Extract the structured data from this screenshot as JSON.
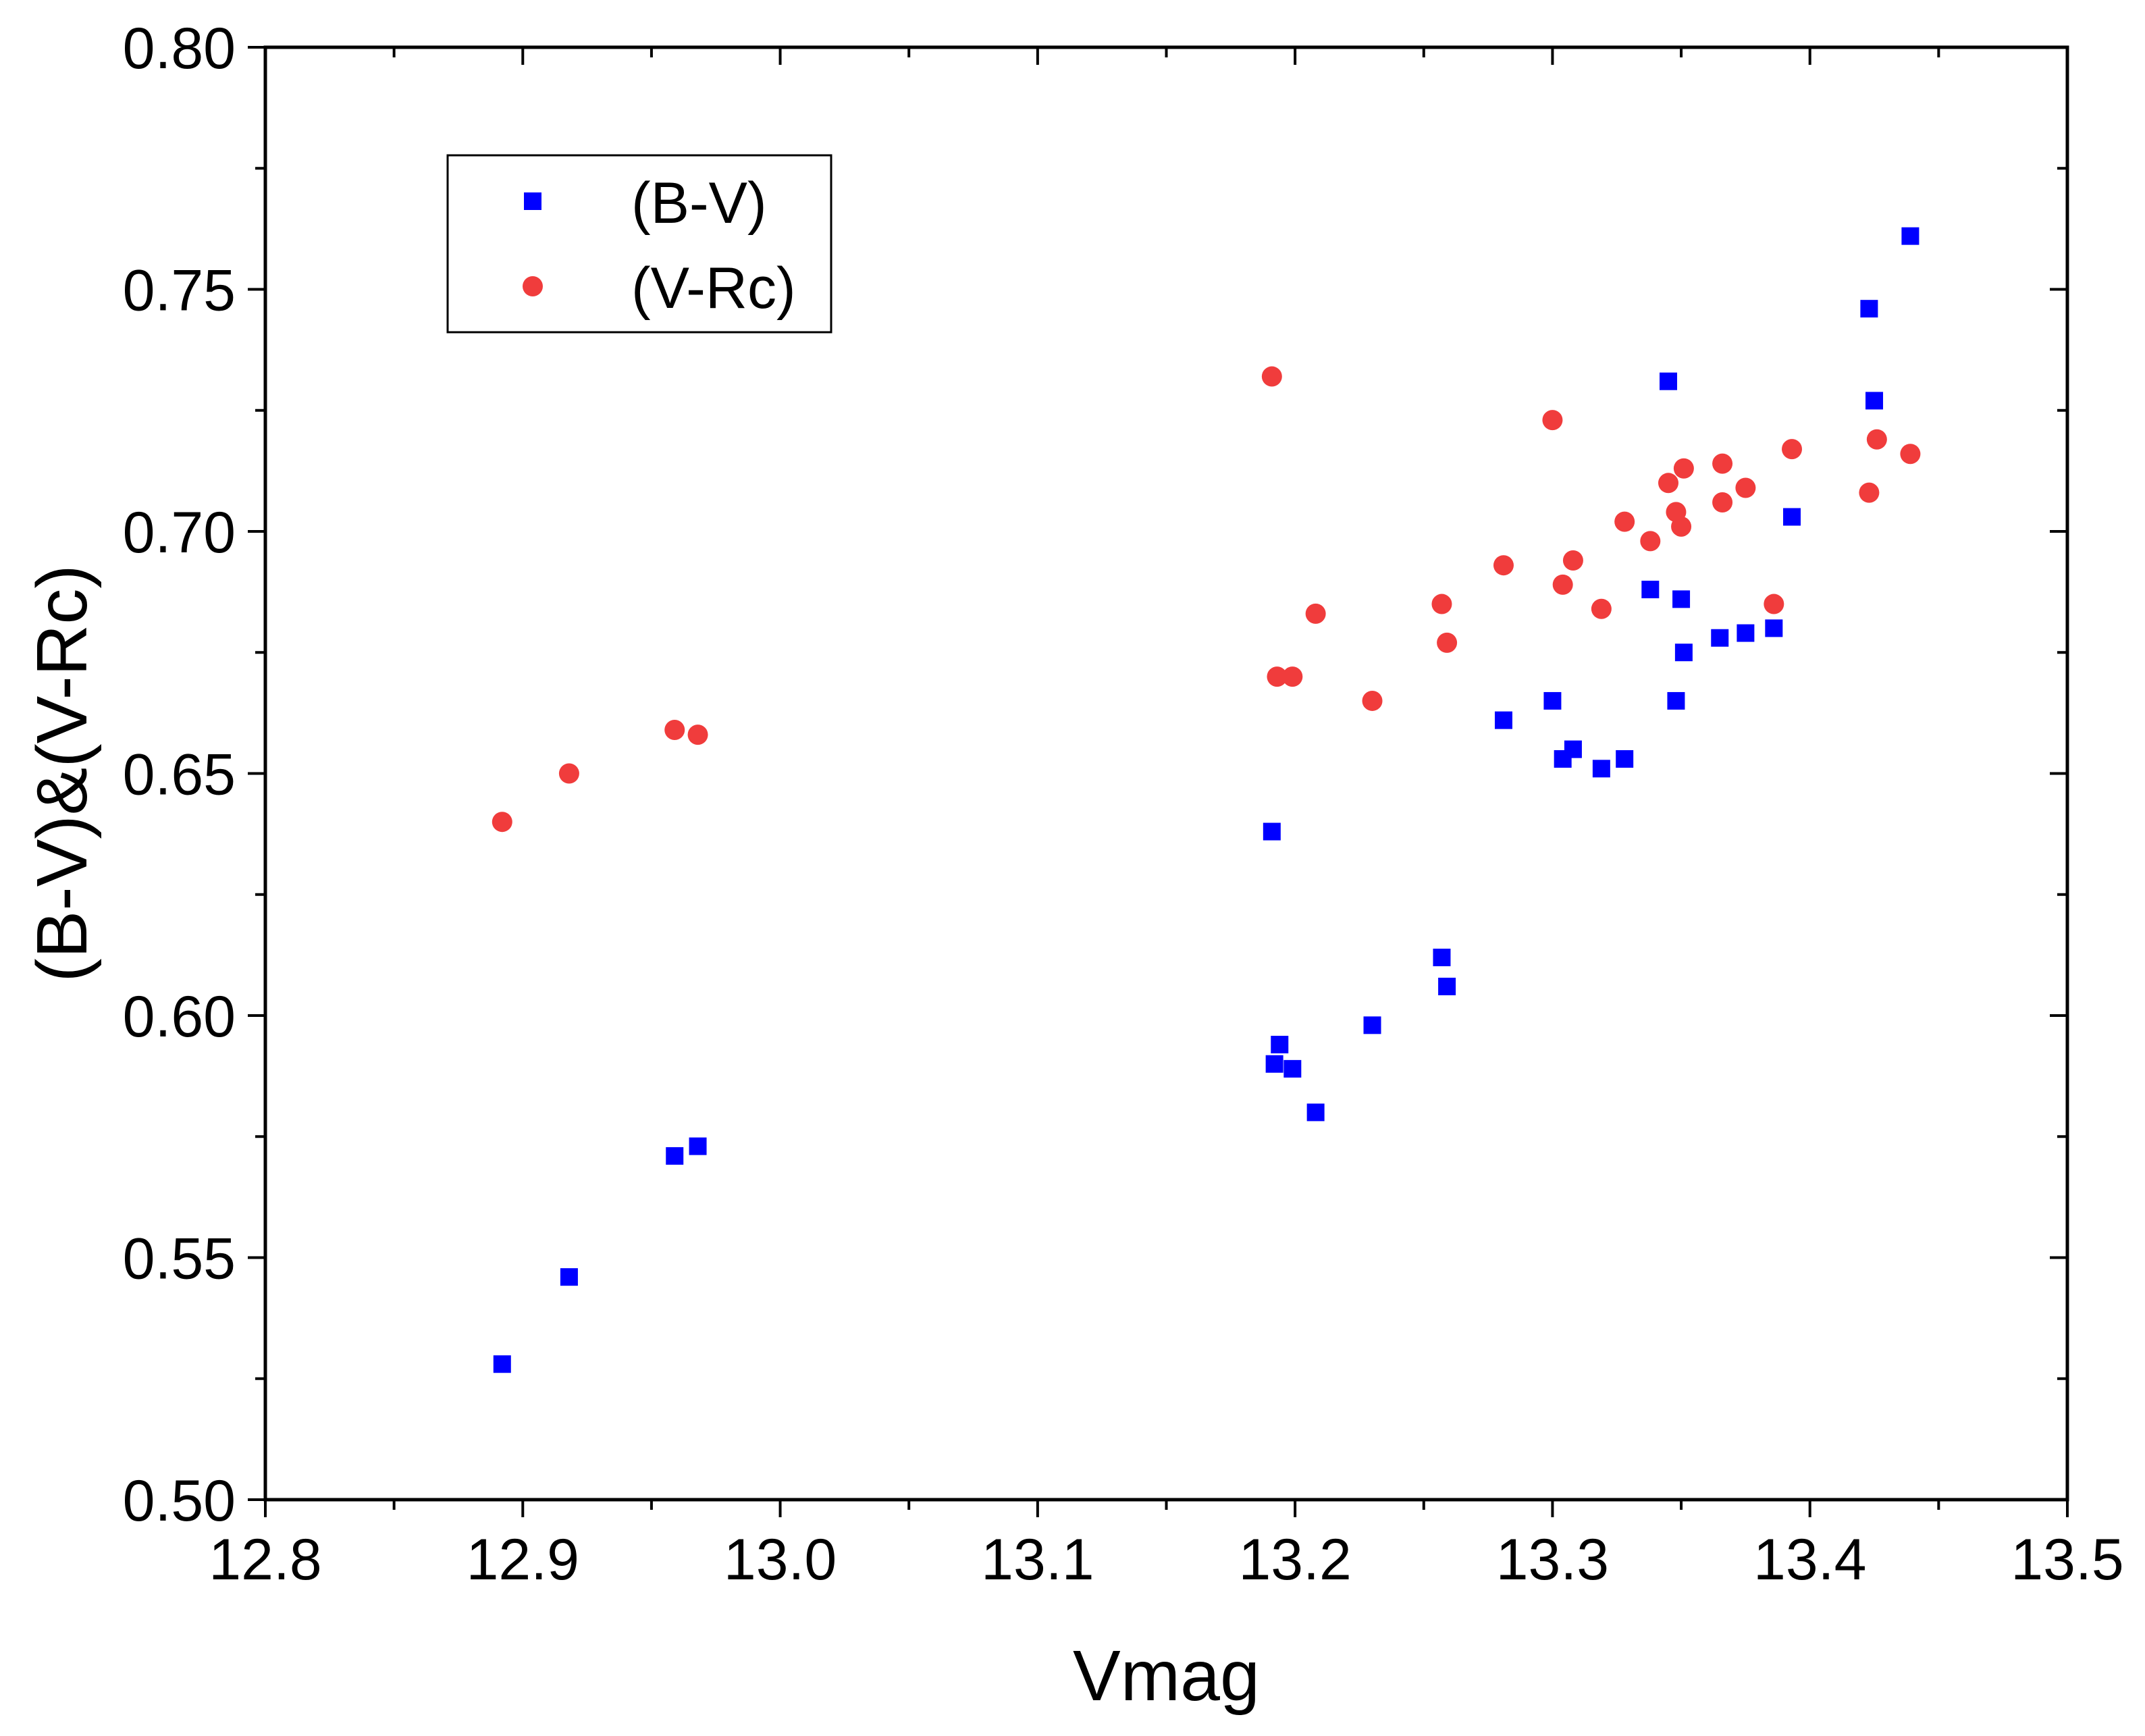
{
  "chart_data": {
    "type": "scatter",
    "title": "",
    "xlabel": "Vmag",
    "ylabel": "(B-V)&(V-Rc)",
    "xlim": [
      12.8,
      13.5
    ],
    "ylim": [
      0.5,
      0.8
    ],
    "xticks": [
      12.8,
      12.9,
      13.0,
      13.1,
      13.2,
      13.3,
      13.4,
      13.5
    ],
    "xtick_labels": [
      "12.8",
      "12.9",
      "13.0",
      "13.1",
      "13.2",
      "13.3",
      "13.4",
      "13.5"
    ],
    "yticks": [
      0.5,
      0.55,
      0.6,
      0.65,
      0.7,
      0.75,
      0.8
    ],
    "ytick_labels": [
      "0.50",
      "0.55",
      "0.60",
      "0.65",
      "0.70",
      "0.75",
      "0.80"
    ],
    "grid": false,
    "legend_position": "top-left",
    "series": [
      {
        "name": "(B-V)",
        "marker": "square",
        "color": "#0000ff",
        "x": [
          12.892,
          12.918,
          12.959,
          12.968,
          13.191,
          13.192,
          13.194,
          13.199,
          13.208,
          13.23,
          13.257,
          13.259,
          13.281,
          13.3,
          13.304,
          13.308,
          13.319,
          13.328,
          13.338,
          13.345,
          13.348,
          13.35,
          13.351,
          13.365,
          13.375,
          13.386,
          13.393,
          13.423,
          13.425,
          13.439
        ],
        "y": [
          0.528,
          0.546,
          0.571,
          0.573,
          0.638,
          0.59,
          0.594,
          0.589,
          0.58,
          0.598,
          0.612,
          0.606,
          0.661,
          0.665,
          0.653,
          0.655,
          0.651,
          0.653,
          0.688,
          0.731,
          0.665,
          0.686,
          0.675,
          0.678,
          0.679,
          0.68,
          0.703,
          0.746,
          0.727,
          0.761
        ]
      },
      {
        "name": "(V-Rc)",
        "marker": "circle",
        "color": "#f03c3c",
        "x": [
          12.892,
          12.918,
          12.959,
          12.968,
          13.191,
          13.193,
          13.199,
          13.208,
          13.23,
          13.257,
          13.259,
          13.281,
          13.3,
          13.304,
          13.308,
          13.319,
          13.328,
          13.338,
          13.345,
          13.348,
          13.35,
          13.351,
          13.366,
          13.366,
          13.375,
          13.386,
          13.393,
          13.423,
          13.426,
          13.439
        ],
        "y": [
          0.64,
          0.65,
          0.659,
          0.658,
          0.732,
          0.67,
          0.67,
          0.683,
          0.665,
          0.685,
          0.677,
          0.693,
          0.723,
          0.689,
          0.694,
          0.684,
          0.702,
          0.698,
          0.71,
          0.704,
          0.701,
          0.713,
          0.714,
          0.706,
          0.709,
          0.685,
          0.717,
          0.708,
          0.719,
          0.716
        ]
      }
    ]
  }
}
